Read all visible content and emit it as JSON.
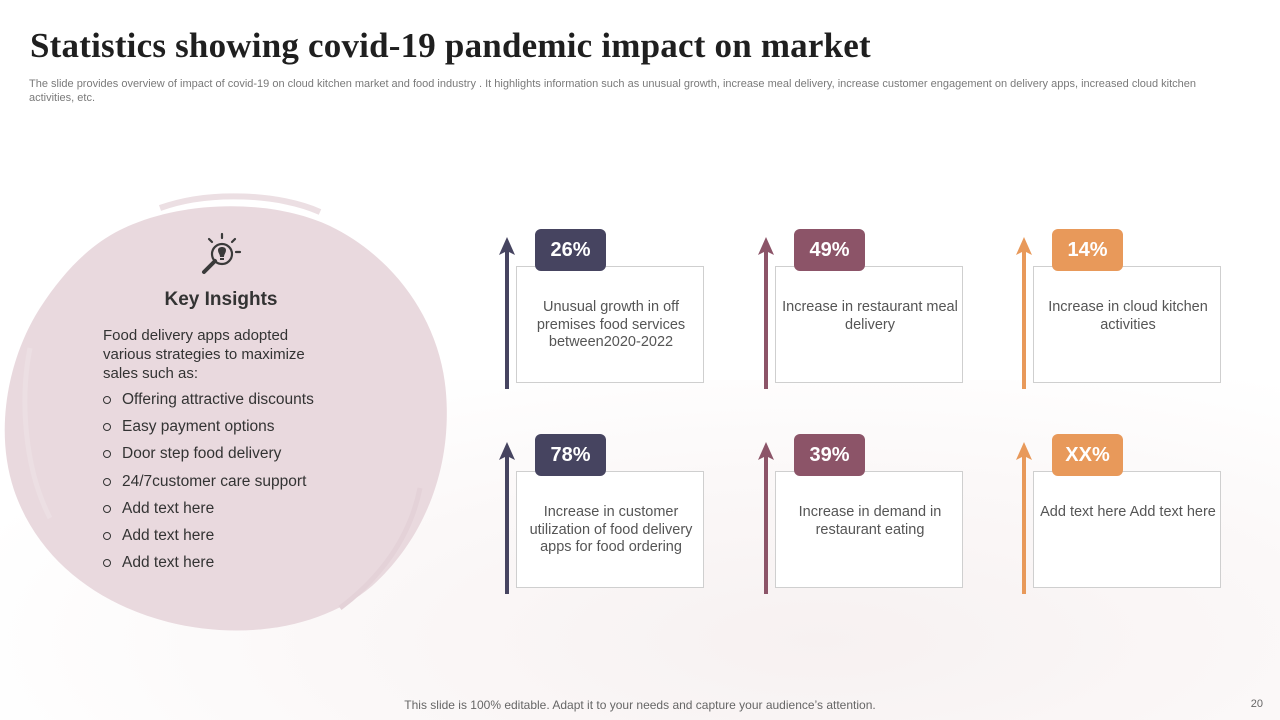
{
  "slide": {
    "title": "Statistics showing covid-19 pandemic impact on market",
    "subtitle": "The slide provides overview of impact of covid-19 on cloud kitchen market and food industry . It highlights information such as unusual growth, increase meal delivery, increase customer engagement on delivery apps, increased cloud kitchen activities, etc.",
    "footer": "This slide is 100% editable. Adapt it to your needs and capture your audience’s attention.",
    "page_number": "20"
  },
  "insights": {
    "icon": "lightbulb-magnifier-icon",
    "heading": "Key Insights",
    "intro": "Food delivery apps adopted various strategies to maximize sales such as:",
    "items": [
      "Offering attractive discounts",
      "Easy payment options",
      "Door step food delivery",
      "24/7customer care support",
      "Add text here",
      "Add text here",
      "Add text here"
    ],
    "blob_color": "#e9d9de"
  },
  "stats": [
    {
      "value": "26%",
      "desc": "Unusual growth in off premises food services between2020-2022",
      "color": "#464460"
    },
    {
      "value": "49%",
      "desc": "Increase in restaurant meal delivery",
      "color": "#8c5468"
    },
    {
      "value": "14%",
      "desc": "Increase in cloud kitchen activities",
      "color": "#e8995a"
    },
    {
      "value": "78%",
      "desc": "Increase in customer utilization of food delivery apps for food ordering",
      "color": "#464460"
    },
    {
      "value": "39%",
      "desc": "Increase in demand in restaurant eating",
      "color": "#8c5468"
    },
    {
      "value": "XX%",
      "desc": "Add text here Add text here",
      "color": "#e8995a"
    }
  ]
}
